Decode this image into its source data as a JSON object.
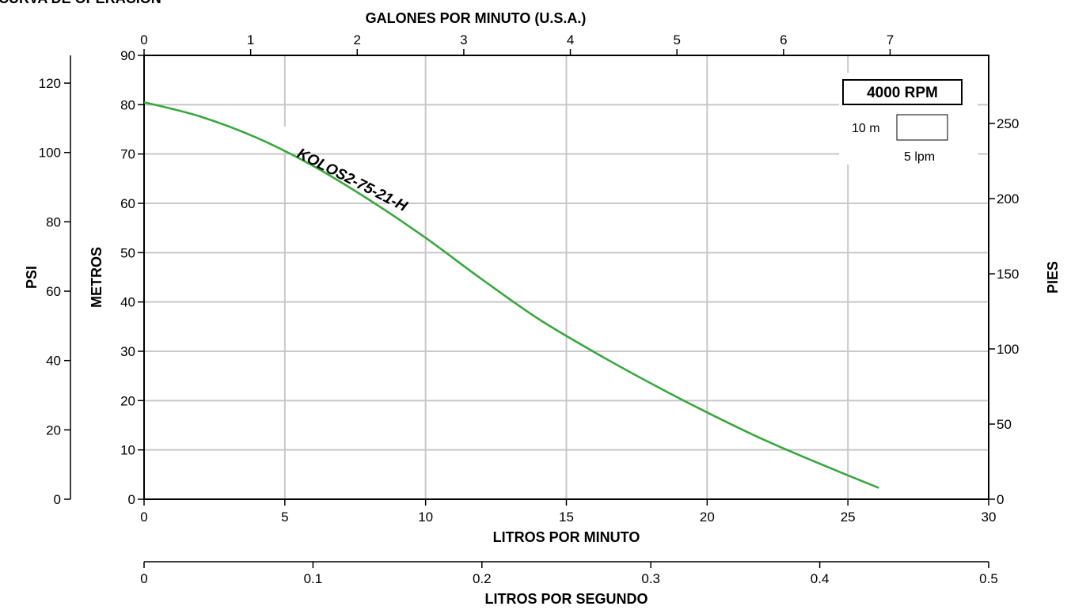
{
  "chart_data": {
    "type": "line",
    "title": "CURVA DE OPERACIÓN",
    "series": [
      {
        "name": "KOLOS2-75-21-H",
        "color": "#3aa640",
        "x": [
          0,
          2,
          4,
          6,
          8,
          10,
          12,
          14,
          16,
          18,
          20,
          22,
          24,
          26.1
        ],
        "y": [
          80.5,
          77.6,
          73.3,
          67.6,
          60.7,
          53.0,
          44.6,
          36.6,
          29.8,
          23.5,
          17.6,
          12.1,
          7.2,
          2.3
        ]
      }
    ],
    "axes": {
      "bottom": {
        "label": "LITROS POR MINUTO",
        "range": [
          0,
          30
        ],
        "ticks": [
          "0",
          "5",
          "10",
          "15",
          "20",
          "25",
          "30"
        ]
      },
      "top": {
        "label": "GALONES POR MINUTO (U.S.A.)",
        "range": [
          0,
          7.925
        ],
        "ticks": [
          "0",
          "1",
          "2",
          "3",
          "4",
          "5",
          "6",
          "7"
        ]
      },
      "bottom2": {
        "label": "LITROS POR SEGUNDO",
        "range": [
          0,
          0.5
        ],
        "ticks": [
          "0",
          "0.1",
          "0.2",
          "0.3",
          "0.4",
          "0.5"
        ]
      },
      "left": {
        "label": "METROS",
        "range": [
          0,
          90
        ],
        "ticks": [
          "0",
          "10",
          "20",
          "30",
          "40",
          "50",
          "60",
          "70",
          "80",
          "90"
        ]
      },
      "left2": {
        "label": "PSI",
        "range": [
          0,
          128
        ],
        "ticks": [
          "0",
          "20",
          "40",
          "60",
          "80",
          "100",
          "120"
        ]
      },
      "right": {
        "label": "PIES",
        "range": [
          0,
          295.3
        ],
        "ticks": [
          "0",
          "50",
          "100",
          "150",
          "200",
          "250"
        ]
      }
    },
    "legend": {
      "rpm": "4000 RPM",
      "scale_height": "10 m",
      "scale_flow": "5 lpm"
    },
    "grid": true
  }
}
